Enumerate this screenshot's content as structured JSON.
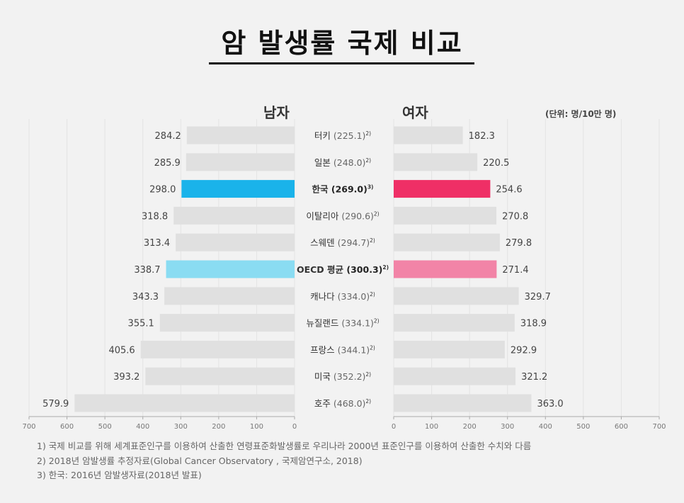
{
  "title": "암 발생률 국제 비교",
  "unit": "(단위: 명/10만 명)",
  "footnotes": [
    "1) 국제 비교를 위해 세계표준인구를 이용하여 산출한 연령표준화발생률로 우리나라 2000년 표준인구를 이용하여 산출한 수치와 다름",
    "2) 2018년 암발생률 추정자료(Global Cancer Observatory , 국제암연구소, 2018)",
    "3) 한국: 2016년 암발생자료(2018년 발표)"
  ],
  "colors": {
    "bar_default": "#e0e0e0",
    "male_korea": "#1ab3ea",
    "male_oecd": "#8adcf2",
    "female_korea": "#ef2f66",
    "female_oecd": "#f284a7"
  },
  "chart_data": {
    "type": "bar",
    "orientation": "horizontal-butterfly",
    "categories": [
      "터키",
      "일본",
      "한국",
      "이탈리아",
      "스웨덴",
      "OECD 평균",
      "캐나다",
      "뉴질랜드",
      "프랑스",
      "미국",
      "호주"
    ],
    "category_totals": [
      "(225.1)",
      "(248.0)",
      "(269.0)",
      "(290.6)",
      "(294.7)",
      "(300.3)",
      "(334.0)",
      "(334.1)",
      "(344.1)",
      "(352.2)",
      "(468.0)"
    ],
    "category_notes": [
      "2)",
      "2)",
      "3)",
      "2)",
      "2)",
      "2)",
      "2)",
      "2)",
      "2)",
      "2)",
      "2)"
    ],
    "highlight": [
      "",
      "",
      "korea",
      "",
      "",
      "oecd",
      "",
      "",
      "",
      "",
      ""
    ],
    "series": [
      {
        "name": "남자",
        "values": [
          284.2,
          285.9,
          298.0,
          318.8,
          313.4,
          338.7,
          343.3,
          355.1,
          405.6,
          393.2,
          579.9
        ],
        "labels": [
          "284.2",
          "285.9",
          "298.0",
          "318.8",
          "313.4",
          "338.7",
          "343.3",
          "355.1",
          "405.6",
          "393.2",
          "579.9"
        ]
      },
      {
        "name": "여자",
        "values": [
          182.3,
          220.5,
          254.6,
          270.8,
          279.8,
          271.4,
          329.7,
          318.9,
          292.9,
          321.2,
          363.0
        ],
        "labels": [
          "182.3",
          "220.5",
          "254.6",
          "270.8",
          "279.8",
          "271.4",
          "329.7",
          "318.9",
          "292.9",
          "321.2",
          "363.0"
        ]
      }
    ],
    "xlim": [
      0,
      700
    ],
    "ticks": [
      0,
      100,
      200,
      300,
      400,
      500,
      600,
      700
    ],
    "tick_labels_left": [
      "0",
      "100",
      "200",
      "300",
      "400",
      "500",
      "600",
      "700"
    ],
    "tick_labels_right": [
      "0",
      "100",
      "200",
      "300",
      "400",
      "500",
      "600",
      "700"
    ],
    "grid": true
  }
}
